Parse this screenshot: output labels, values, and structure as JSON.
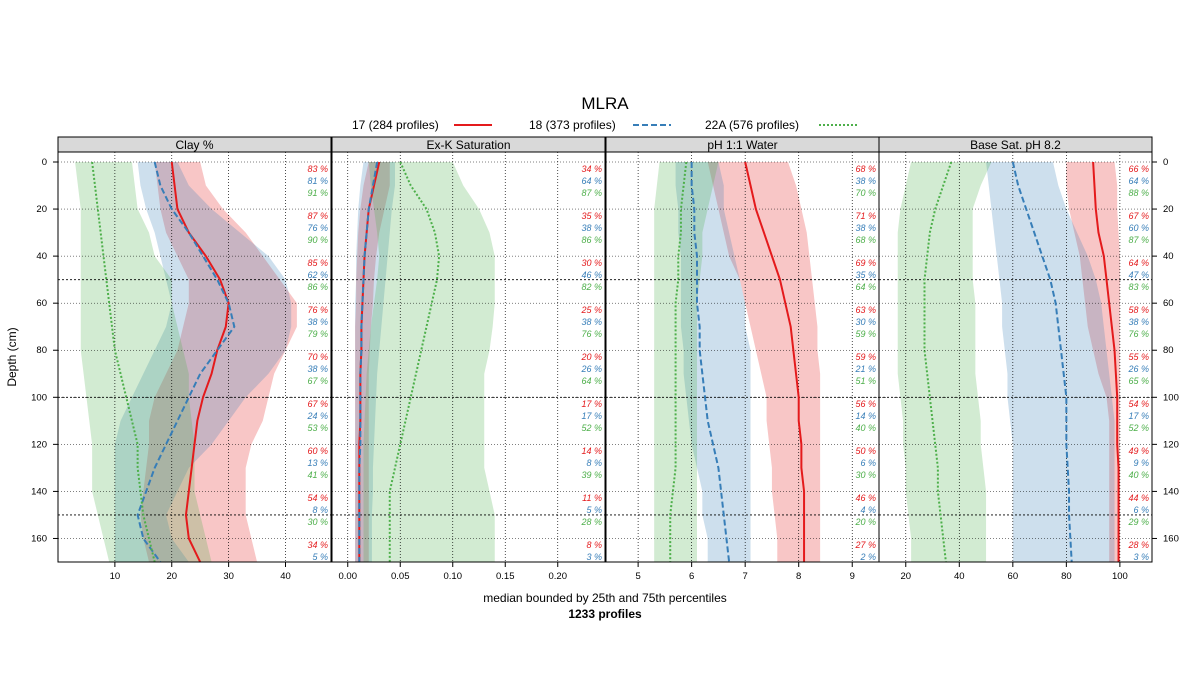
{
  "chart_data": {
    "type": "line",
    "title": "MLRA",
    "xlabel": "median bounded by 25th and 75th percentiles",
    "xlabel2": "1233 profiles",
    "ylabel": "Depth (cm)",
    "ylim": [
      170,
      0
    ],
    "yticks": [
      0,
      20,
      40,
      60,
      80,
      100,
      120,
      140,
      160
    ],
    "colors": {
      "17": "#e41a1c",
      "18": "#377eb8",
      "22A": "#4daf4a"
    },
    "legend": [
      {
        "key": "17",
        "label": "17 (284 profiles)",
        "style": "solid"
      },
      {
        "key": "18",
        "label": "18 (373 profiles)",
        "style": "dashed"
      },
      {
        "key": "22A",
        "label": "22A (576 profiles)",
        "style": "dotted"
      }
    ],
    "depths": [
      0,
      10,
      20,
      30,
      40,
      50,
      60,
      70,
      80,
      90,
      100,
      110,
      120,
      130,
      140,
      150,
      160,
      170
    ],
    "contributing_depths": [
      5,
      25,
      45,
      65,
      85,
      105,
      125,
      145,
      165
    ],
    "panels": [
      {
        "name": "Clay %",
        "xlim": [
          0,
          48
        ],
        "xticks": [
          10,
          20,
          30,
          40
        ],
        "xticklabels": [
          "10",
          "20",
          "30",
          "40"
        ],
        "series": [
          {
            "key": "17",
            "median": [
              20,
              20.5,
              21,
              23,
              26,
              28.5,
              30,
              29.5,
              28,
              27,
              25.5,
              24.5,
              24,
              23.5,
              23,
              22.5,
              23,
              25
            ],
            "q25": [
              17,
              17.5,
              18,
              19,
              21,
              23,
              23,
              22,
              21,
              19,
              17,
              16,
              16,
              15.5,
              15,
              14.5,
              15,
              16
            ],
            "q75": [
              25,
              26,
              29,
              33,
              36,
              39,
              42,
              42,
              40,
              38,
              37,
              36,
              34,
              33,
              33,
              33,
              34,
              35
            ],
            "pct": [
              "83 %",
              "87 %",
              "85 %",
              "76 %",
              "70 %",
              "67 %",
              "60 %",
              "54 %",
              "34 %"
            ]
          },
          {
            "key": "18",
            "median": [
              17,
              18,
              20,
              23,
              25.5,
              28,
              30,
              31,
              28,
              25,
              23,
              21,
              19,
              17,
              15.5,
              14,
              15,
              18
            ],
            "q25": [
              14,
              14.5,
              15.5,
              17,
              18,
              19,
              20,
              19,
              17,
              15,
              13,
              11,
              10,
              10,
              10,
              10,
              10,
              10
            ],
            "q75": [
              21,
              23,
              27,
              32,
              37,
              40,
              41,
              41,
              40,
              37,
              33,
              30,
              27,
              23,
              21,
              19,
              20,
              23
            ],
            "pct": [
              "81 %",
              "76 %",
              "62 %",
              "38 %",
              "38 %",
              "24 %",
              "13 %",
              "8 %",
              "5 %"
            ]
          },
          {
            "key": "22A",
            "median": [
              6,
              6.5,
              7,
              7.5,
              8,
              8.5,
              9,
              9.5,
              10,
              11,
              12,
              13,
              14,
              14,
              14.5,
              15,
              16,
              17
            ],
            "q25": [
              3,
              3.5,
              4,
              4,
              4,
              4,
              4,
              4,
              4,
              4.5,
              5,
              5.5,
              6,
              6,
              6,
              7,
              8,
              9
            ],
            "q75": [
              13,
              13.5,
              14,
              16,
              17,
              20,
              20,
              21,
              22,
              23,
              23,
              23.5,
              24,
              24,
              24,
              25,
              26,
              27
            ],
            "pct": [
              "91 %",
              "90 %",
              "86 %",
              "79 %",
              "67 %",
              "53 %",
              "41 %",
              "30 %",
              ""
            ]
          }
        ]
      },
      {
        "name": "Ex-K Saturation",
        "xlim": [
          -0.015,
          0.245
        ],
        "xticks": [
          0,
          0.05,
          0.1,
          0.15,
          0.2
        ],
        "xticklabels": [
          "0.00",
          "0.05",
          "0.10",
          "0.15",
          "0.20"
        ],
        "series": [
          {
            "key": "17",
            "median": [
              0.03,
              0.025,
              0.02,
              0.018,
              0.016,
              0.015,
              0.014,
              0.013,
              0.013,
              0.012,
              0.012,
              0.012,
              0.011,
              0.011,
              0.011,
              0.011,
              0.011,
              0.011
            ],
            "q25": [
              0.02,
              0.015,
              0.012,
              0.01,
              0.009,
              0.008,
              0.008,
              0.007,
              0.007,
              0.007,
              0.007,
              0.007,
              0.007,
              0.007,
              0.007,
              0.007,
              0.007,
              0.007
            ],
            "q75": [
              0.04,
              0.04,
              0.035,
              0.03,
              0.027,
              0.025,
              0.024,
              0.022,
              0.021,
              0.02,
              0.02,
              0.02,
              0.02,
              0.02,
              0.02,
              0.02,
              0.02,
              0.02
            ],
            "pct": [
              "34 %",
              "35 %",
              "30 %",
              "25 %",
              "20 %",
              "17 %",
              "14 %",
              "11 %",
              "8 %"
            ]
          },
          {
            "key": "18",
            "median": [
              0.028,
              0.024,
              0.02,
              0.018,
              0.016,
              0.015,
              0.014,
              0.013,
              0.013,
              0.012,
              0.012,
              0.012,
              0.012,
              0.011,
              0.011,
              0.011,
              0.011,
              0.011
            ],
            "q25": [
              0.015,
              0.012,
              0.01,
              0.009,
              0.008,
              0.008,
              0.007,
              0.007,
              0.007,
              0.007,
              0.007,
              0.007,
              0.007,
              0.007,
              0.007,
              0.007,
              0.007,
              0.007
            ],
            "q75": [
              0.045,
              0.045,
              0.042,
              0.04,
              0.038,
              0.036,
              0.034,
              0.032,
              0.03,
              0.028,
              0.027,
              0.026,
              0.025,
              0.024,
              0.024,
              0.023,
              0.023,
              0.023
            ],
            "pct": [
              "64 %",
              "38 %",
              "46 %",
              "38 %",
              "26 %",
              "17 %",
              "8 %",
              "5 %",
              "3 %"
            ]
          },
          {
            "key": "22A",
            "median": [
              0.05,
              0.06,
              0.075,
              0.083,
              0.087,
              0.085,
              0.08,
              0.075,
              0.07,
              0.065,
              0.06,
              0.055,
              0.05,
              0.045,
              0.04,
              0.04,
              0.04,
              0.04
            ],
            "q25": [
              0.02,
              0.022,
              0.025,
              0.028,
              0.03,
              0.028,
              0.025,
              0.022,
              0.02,
              0.018,
              0.017,
              0.016,
              0.015,
              0.015,
              0.015,
              0.015,
              0.015,
              0.015
            ],
            "q75": [
              0.1,
              0.11,
              0.125,
              0.135,
              0.14,
              0.14,
              0.14,
              0.138,
              0.135,
              0.13,
              0.13,
              0.13,
              0.13,
              0.13,
              0.135,
              0.14,
              0.14,
              0.14
            ],
            "pct": [
              "87 %",
              "86 %",
              "82 %",
              "76 %",
              "64 %",
              "52 %",
              "39 %",
              "28 %",
              ""
            ]
          }
        ]
      },
      {
        "name": "pH 1:1 Water",
        "xlim": [
          4.4,
          9.5
        ],
        "xticks": [
          5,
          6,
          7,
          8,
          9
        ],
        "xticklabels": [
          "5",
          "6",
          "7",
          "8",
          "9"
        ],
        "series": [
          {
            "key": "17",
            "median": [
              7.0,
              7.1,
              7.2,
              7.35,
              7.5,
              7.65,
              7.75,
              7.85,
              7.9,
              7.95,
              8.0,
              8.0,
              8.05,
              8.05,
              8.1,
              8.1,
              8.1,
              8.1
            ],
            "q25": [
              6.3,
              6.4,
              6.5,
              6.6,
              6.7,
              6.9,
              7.0,
              7.1,
              7.2,
              7.3,
              7.4,
              7.4,
              7.45,
              7.5,
              7.5,
              7.55,
              7.6,
              7.6
            ],
            "q75": [
              7.8,
              7.95,
              8.05,
              8.15,
              8.2,
              8.25,
              8.3,
              8.35,
              8.35,
              8.4,
              8.4,
              8.4,
              8.4,
              8.4,
              8.4,
              8.4,
              8.4,
              8.4
            ],
            "pct": [
              "68 %",
              "71 %",
              "69 %",
              "63 %",
              "59 %",
              "56 %",
              "50 %",
              "46 %",
              "27 %"
            ]
          },
          {
            "key": "18",
            "median": [
              6.0,
              6.0,
              6.05,
              6.05,
              6.1,
              6.1,
              6.1,
              6.15,
              6.15,
              6.2,
              6.25,
              6.3,
              6.4,
              6.5,
              6.55,
              6.6,
              6.65,
              6.7
            ],
            "q25": [
              5.7,
              5.7,
              5.75,
              5.75,
              5.8,
              5.8,
              5.8,
              5.8,
              5.85,
              5.85,
              5.9,
              5.95,
              6.0,
              6.1,
              6.2,
              6.2,
              6.3,
              6.3
            ],
            "q75": [
              6.5,
              6.6,
              6.6,
              6.7,
              6.8,
              6.9,
              7.0,
              7.0,
              7.1,
              7.1,
              7.1,
              7.1,
              7.1,
              7.1,
              7.1,
              7.1,
              7.1,
              7.1
            ],
            "pct": [
              "38 %",
              "38 %",
              "35 %",
              "30 %",
              "21 %",
              "14 %",
              "6 %",
              "4 %",
              "2 %"
            ]
          },
          {
            "key": "22A",
            "median": [
              5.9,
              5.85,
              5.8,
              5.8,
              5.75,
              5.75,
              5.7,
              5.7,
              5.7,
              5.7,
              5.7,
              5.7,
              5.7,
              5.7,
              5.65,
              5.6,
              5.6,
              5.6
            ],
            "q25": [
              5.4,
              5.35,
              5.3,
              5.3,
              5.3,
              5.3,
              5.3,
              5.3,
              5.3,
              5.3,
              5.3,
              5.3,
              5.3,
              5.3,
              5.3,
              5.3,
              5.3,
              5.3
            ],
            "q75": [
              6.5,
              6.4,
              6.3,
              6.2,
              6.2,
              6.15,
              6.1,
              6.1,
              6.1,
              6.1,
              6.1,
              6.1,
              6.1,
              6.1,
              6.1,
              6.1,
              6.1,
              6.1
            ],
            "pct": [
              "70 %",
              "68 %",
              "64 %",
              "59 %",
              "51 %",
              "40 %",
              "30 %",
              "20 %",
              ""
            ]
          }
        ]
      },
      {
        "name": "Base Sat. pH 8.2",
        "xlim": [
          10,
          112
        ],
        "xticks": [
          20,
          40,
          60,
          80,
          100
        ],
        "xticklabels": [
          "20",
          "40",
          "60",
          "80",
          "100"
        ],
        "series": [
          {
            "key": "17",
            "median": [
              90,
              90.5,
              91,
              92,
              94,
              95,
              96,
              97,
              98,
              98.5,
              99,
              99,
              99,
              99.5,
              99.5,
              99.5,
              99.5,
              99.5
            ],
            "q25": [
              80,
              80,
              81,
              83,
              85,
              86,
              87,
              88,
              90,
              92,
              95,
              96,
              96,
              96,
              96,
              96,
              96,
              96
            ],
            "q75": [
              98,
              99,
              99,
              99.5,
              100,
              100,
              100,
              100,
              100,
              100,
              100,
              100,
              100,
              100,
              100,
              100,
              100,
              100
            ],
            "pct": [
              "66 %",
              "67 %",
              "64 %",
              "58 %",
              "55 %",
              "54 %",
              "49 %",
              "44 %",
              "28 %"
            ]
          },
          {
            "key": "18",
            "median": [
              60,
              62,
              65,
              68,
              71,
              74,
              76,
              77,
              78,
              79,
              80,
              80,
              80,
              80.5,
              81,
              81,
              81.5,
              82
            ],
            "q25": [
              50,
              51,
              52,
              53,
              54,
              55,
              56,
              56,
              57,
              58,
              58,
              59,
              60,
              60,
              60,
              60,
              60,
              60
            ],
            "q75": [
              75,
              77,
              80,
              84,
              88,
              91,
              93,
              94,
              95,
              96,
              97,
              98,
              98,
              98,
              98,
              98,
              98,
              98
            ],
            "pct": [
              "64 %",
              "60 %",
              "47 %",
              "38 %",
              "26 %",
              "17 %",
              "9 %",
              "6 %",
              "3 %"
            ]
          },
          {
            "key": "22A",
            "median": [
              37,
              34,
              31,
              29,
              28,
              27,
              27,
              27,
              27,
              28,
              29,
              30,
              31,
              32,
              32,
              33,
              34,
              35
            ],
            "q25": [
              22,
              20,
              18,
              17,
              17,
              17,
              17,
              17,
              17,
              17,
              18,
              19,
              19,
              20,
              20,
              21,
              22,
              22
            ],
            "q75": [
              52,
              48,
              45,
              45,
              45,
              45,
              46,
              46,
              46,
              46,
              47,
              48,
              48,
              49,
              50,
              50,
              50,
              50
            ],
            "pct": [
              "88 %",
              "87 %",
              "83 %",
              "76 %",
              "65 %",
              "52 %",
              "40 %",
              "29 %",
              ""
            ]
          }
        ]
      }
    ]
  }
}
